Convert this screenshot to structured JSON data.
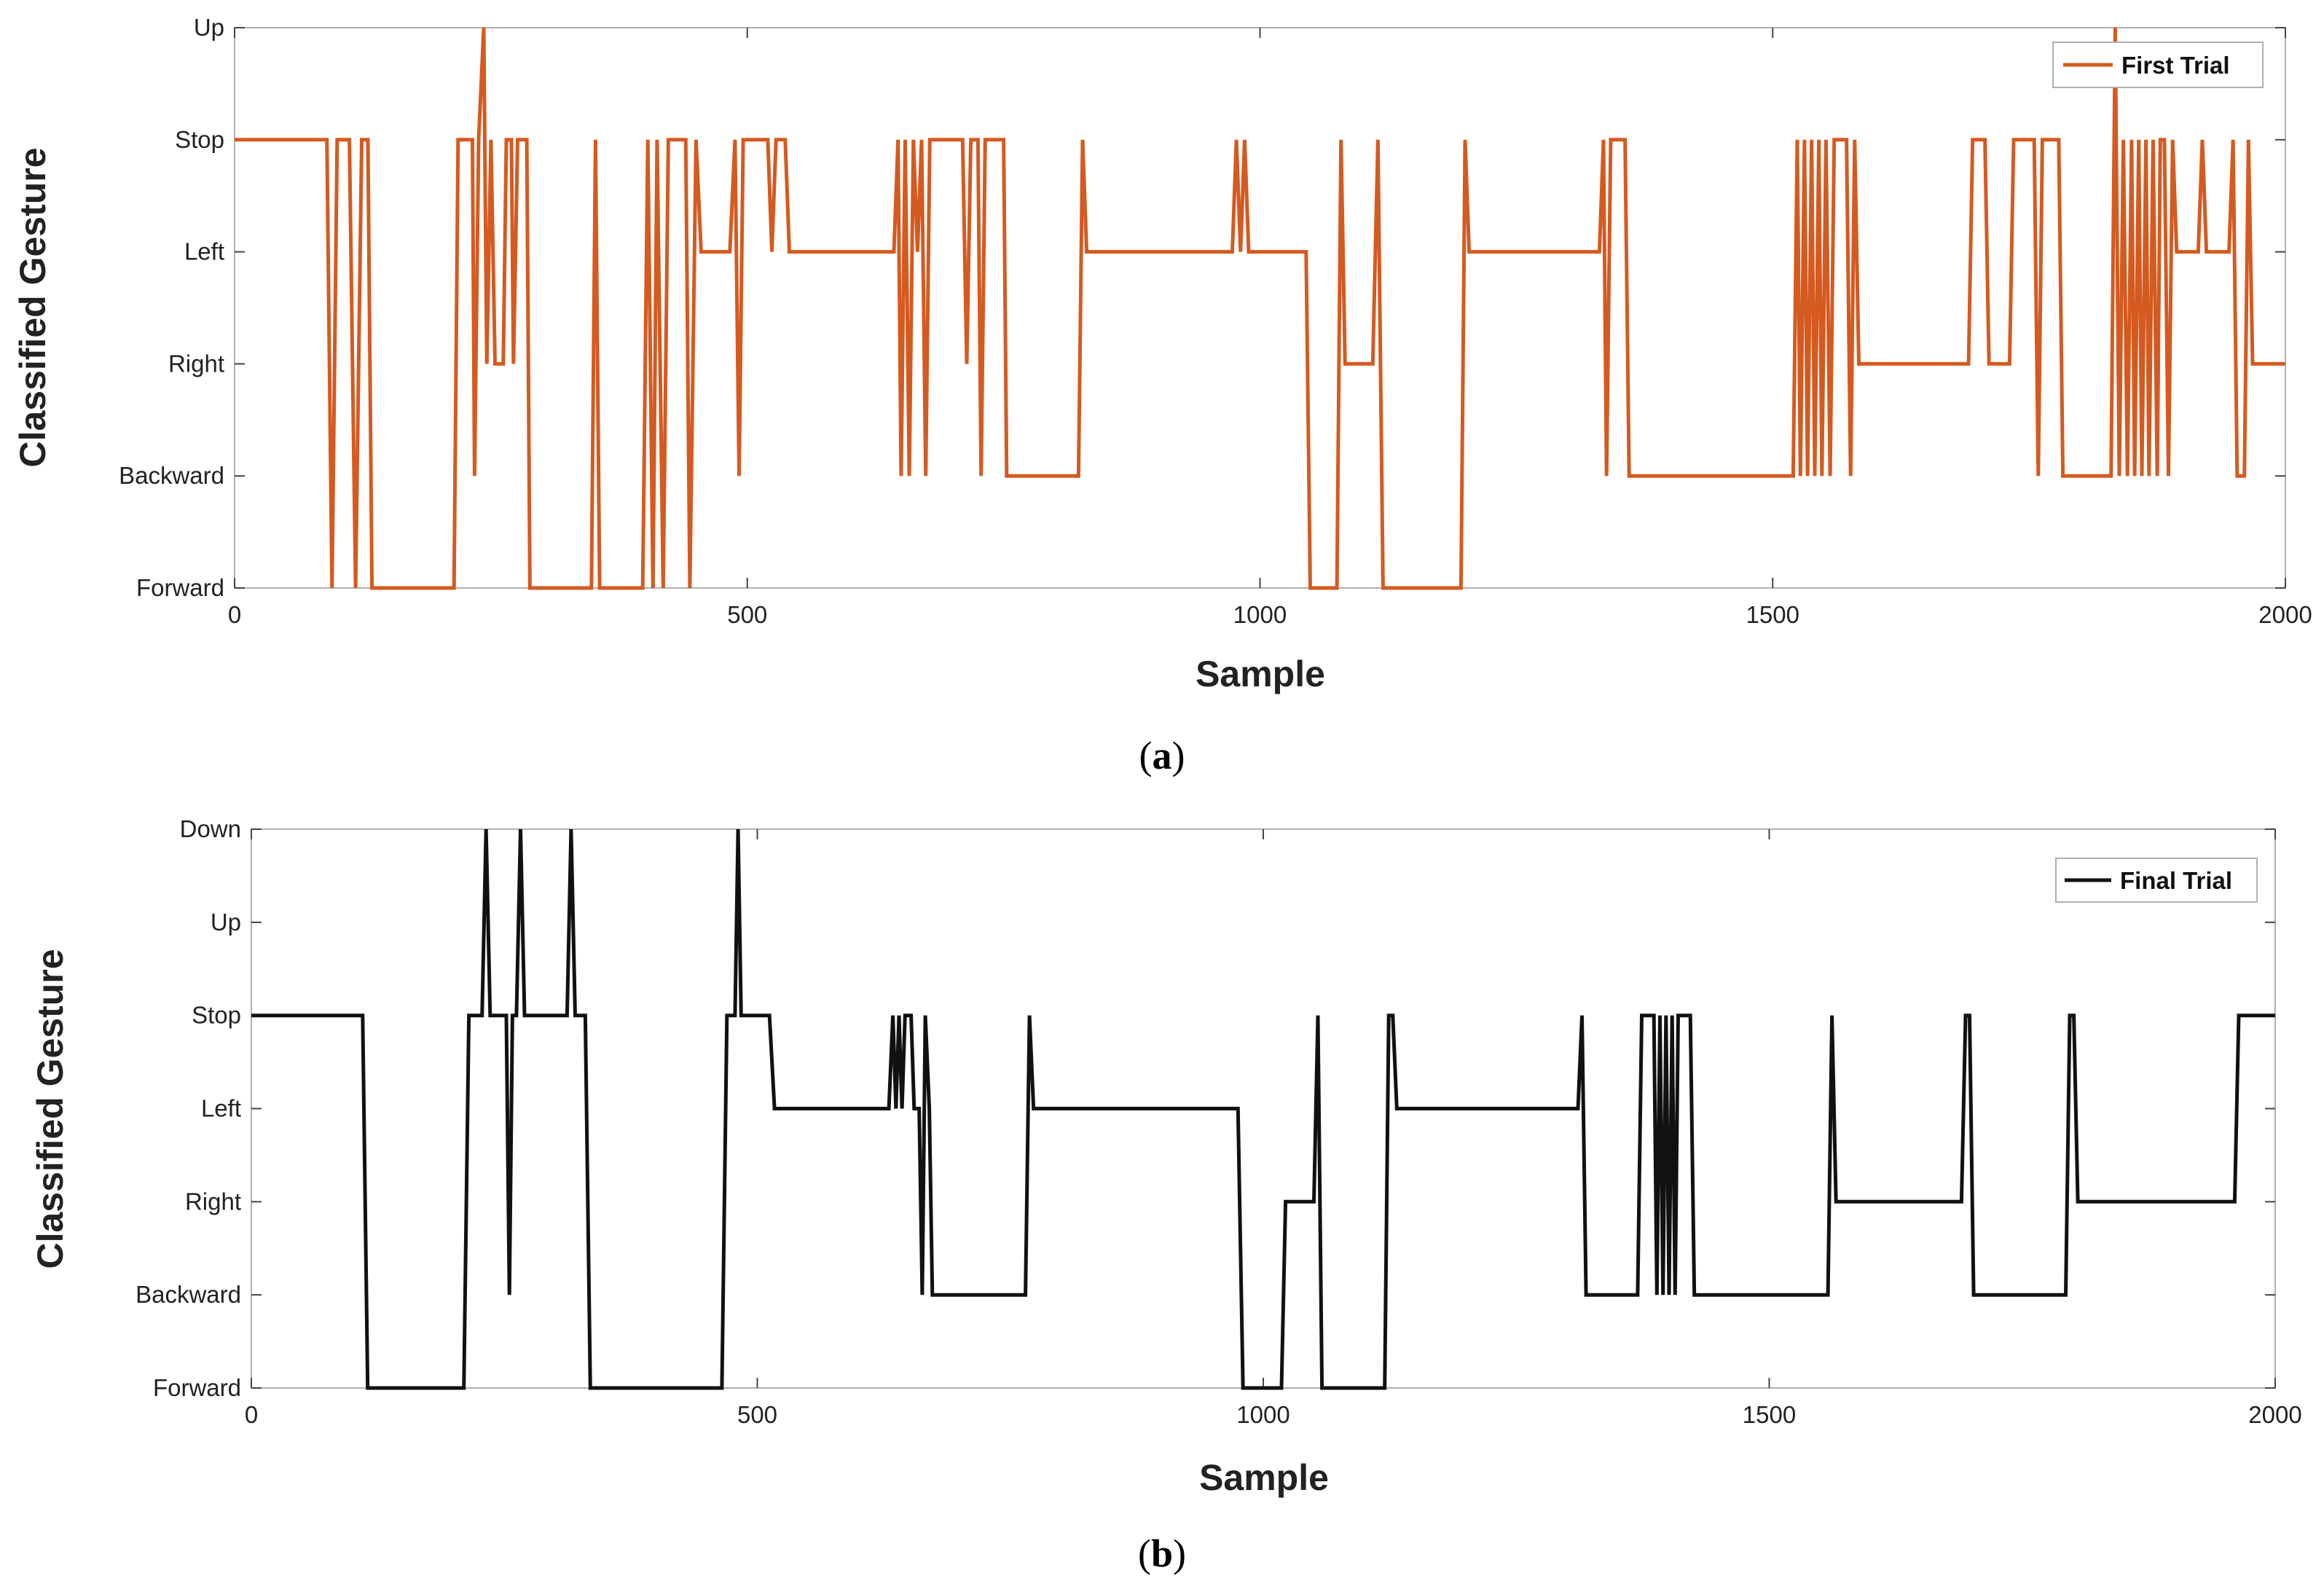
{
  "chart_data": [
    {
      "type": "line",
      "step": true,
      "panel_label": "a",
      "title": "",
      "xlabel": "Sample",
      "ylabel": "Classified Gesture",
      "xlim": [
        0,
        2000
      ],
      "xticks": [
        0,
        500,
        1000,
        1500,
        2000
      ],
      "categories": [
        "Forward",
        "Backward",
        "Right",
        "Left",
        "Stop",
        "Up"
      ],
      "legend": {
        "position": "top-right",
        "label": "First Trial"
      },
      "series": [
        {
          "name": "First Trial",
          "color": "#d55a20",
          "points": [
            [
              0,
              "Stop"
            ],
            [
              90,
              "Stop"
            ],
            [
              95,
              "Forward"
            ],
            [
              100,
              "Stop"
            ],
            [
              112,
              "Stop"
            ],
            [
              118,
              "Forward"
            ],
            [
              124,
              "Stop"
            ],
            [
              130,
              "Stop"
            ],
            [
              134,
              "Forward"
            ],
            [
              214,
              "Forward"
            ],
            [
              218,
              "Stop"
            ],
            [
              232,
              "Stop"
            ],
            [
              234,
              "Backward"
            ],
            [
              238,
              "Stop"
            ],
            [
              243,
              "Up"
            ],
            [
              246,
              "Right"
            ],
            [
              250,
              "Stop"
            ],
            [
              254,
              "Right"
            ],
            [
              262,
              "Right"
            ],
            [
              265,
              "Stop"
            ],
            [
              270,
              "Stop"
            ],
            [
              272,
              "Right"
            ],
            [
              276,
              "Stop"
            ],
            [
              285,
              "Stop"
            ],
            [
              288,
              "Forward"
            ],
            [
              348,
              "Forward"
            ],
            [
              352,
              "Stop"
            ],
            [
              356,
              "Forward"
            ],
            [
              398,
              "Forward"
            ],
            [
              403,
              "Stop"
            ],
            [
              408,
              "Forward"
            ],
            [
              412,
              "Stop"
            ],
            [
              418,
              "Forward"
            ],
            [
              423,
              "Stop"
            ],
            [
              440,
              "Stop"
            ],
            [
              444,
              "Forward"
            ],
            [
              450,
              "Stop"
            ],
            [
              455,
              "Left"
            ],
            [
              483,
              "Left"
            ],
            [
              488,
              "Stop"
            ],
            [
              492,
              "Backward"
            ],
            [
              496,
              "Stop"
            ],
            [
              520,
              "Stop"
            ],
            [
              524,
              "Left"
            ],
            [
              528,
              "Stop"
            ],
            [
              537,
              "Stop"
            ],
            [
              541,
              "Left"
            ],
            [
              643,
              "Left"
            ],
            [
              647,
              "Stop"
            ],
            [
              650,
              "Backward"
            ],
            [
              654,
              "Stop"
            ],
            [
              658,
              "Backward"
            ],
            [
              662,
              "Stop"
            ],
            [
              666,
              "Left"
            ],
            [
              670,
              "Stop"
            ],
            [
              674,
              "Backward"
            ],
            [
              678,
              "Stop"
            ],
            [
              710,
              "Stop"
            ],
            [
              714,
              "Right"
            ],
            [
              718,
              "Stop"
            ],
            [
              725,
              "Stop"
            ],
            [
              728,
              "Backward"
            ],
            [
              732,
              "Stop"
            ],
            [
              750,
              "Stop"
            ],
            [
              753,
              "Backward"
            ],
            [
              823,
              "Backward"
            ],
            [
              827,
              "Stop"
            ],
            [
              831,
              "Left"
            ],
            [
              973,
              "Left"
            ],
            [
              977,
              "Stop"
            ],
            [
              981,
              "Left"
            ],
            [
              985,
              "Stop"
            ],
            [
              989,
              "Left"
            ],
            [
              1045,
              "Left"
            ],
            [
              1049,
              "Forward"
            ],
            [
              1075,
              "Forward"
            ],
            [
              1079,
              "Stop"
            ],
            [
              1083,
              "Right"
            ],
            [
              1110,
              "Right"
            ],
            [
              1115,
              "Stop"
            ],
            [
              1120,
              "Forward"
            ],
            [
              1196,
              "Forward"
            ],
            [
              1200,
              "Stop"
            ],
            [
              1204,
              "Left"
            ],
            [
              1331,
              "Left"
            ],
            [
              1335,
              "Stop"
            ],
            [
              1338,
              "Backward"
            ],
            [
              1342,
              "Stop"
            ],
            [
              1356,
              "Stop"
            ],
            [
              1360,
              "Backward"
            ],
            [
              1520,
              "Backward"
            ],
            [
              1524,
              "Stop"
            ],
            [
              1527,
              "Backward"
            ],
            [
              1531,
              "Stop"
            ],
            [
              1534,
              "Backward"
            ],
            [
              1538,
              "Stop"
            ],
            [
              1541,
              "Backward"
            ],
            [
              1545,
              "Stop"
            ],
            [
              1548,
              "Backward"
            ],
            [
              1552,
              "Stop"
            ],
            [
              1556,
              "Backward"
            ],
            [
              1560,
              "Stop"
            ],
            [
              1572,
              "Stop"
            ],
            [
              1576,
              "Backward"
            ],
            [
              1580,
              "Stop"
            ],
            [
              1584,
              "Right"
            ],
            [
              1691,
              "Right"
            ],
            [
              1695,
              "Stop"
            ],
            [
              1707,
              "Stop"
            ],
            [
              1711,
              "Right"
            ],
            [
              1731,
              "Right"
            ],
            [
              1735,
              "Stop"
            ],
            [
              1755,
              "Stop"
            ],
            [
              1759,
              "Backward"
            ],
            [
              1763,
              "Stop"
            ],
            [
              1779,
              "Stop"
            ],
            [
              1783,
              "Backward"
            ],
            [
              1830,
              "Backward"
            ],
            [
              1834,
              "Up"
            ],
            [
              1838,
              "Backward"
            ],
            [
              1842,
              "Stop"
            ],
            [
              1846,
              "Backward"
            ],
            [
              1850,
              "Stop"
            ],
            [
              1853,
              "Backward"
            ],
            [
              1857,
              "Stop"
            ],
            [
              1860,
              "Backward"
            ],
            [
              1864,
              "Stop"
            ],
            [
              1867,
              "Backward"
            ],
            [
              1871,
              "Stop"
            ],
            [
              1875,
              "Backward"
            ],
            [
              1878,
              "Stop"
            ],
            [
              1882,
              "Stop"
            ],
            [
              1886,
              "Backward"
            ],
            [
              1890,
              "Stop"
            ],
            [
              1894,
              "Left"
            ],
            [
              1915,
              "Left"
            ],
            [
              1919,
              "Stop"
            ],
            [
              1923,
              "Left"
            ],
            [
              1945,
              "Left"
            ],
            [
              1949,
              "Stop"
            ],
            [
              1953,
              "Backward"
            ],
            [
              1960,
              "Backward"
            ],
            [
              1964,
              "Stop"
            ],
            [
              1968,
              "Right"
            ],
            [
              2000,
              "Right"
            ]
          ]
        }
      ]
    },
    {
      "type": "line",
      "step": true,
      "panel_label": "b",
      "title": "",
      "xlabel": "Sample",
      "ylabel": "Classified Gesture",
      "xlim": [
        0,
        2000
      ],
      "xticks": [
        0,
        500,
        1000,
        1500,
        2000
      ],
      "categories": [
        "Forward",
        "Backward",
        "Right",
        "Left",
        "Stop",
        "Up",
        "Down"
      ],
      "legend": {
        "position": "top-right",
        "label": "Final Trial"
      },
      "series": [
        {
          "name": "Final Trial",
          "color": "#111111",
          "points": [
            [
              0,
              "Stop"
            ],
            [
              110,
              "Stop"
            ],
            [
              115,
              "Forward"
            ],
            [
              210,
              "Forward"
            ],
            [
              215,
              "Stop"
            ],
            [
              228,
              "Stop"
            ],
            [
              232,
              "Down"
            ],
            [
              236,
              "Stop"
            ],
            [
              252,
              "Stop"
            ],
            [
              255,
              "Backward"
            ],
            [
              258,
              "Stop"
            ],
            [
              262,
              "Stop"
            ],
            [
              266,
              "Down"
            ],
            [
              270,
              "Stop"
            ],
            [
              312,
              "Stop"
            ],
            [
              316,
              "Down"
            ],
            [
              320,
              "Stop"
            ],
            [
              330,
              "Stop"
            ],
            [
              335,
              "Forward"
            ],
            [
              465,
              "Forward"
            ],
            [
              470,
              "Stop"
            ],
            [
              478,
              "Stop"
            ],
            [
              481,
              "Down"
            ],
            [
              484,
              "Stop"
            ],
            [
              512,
              "Stop"
            ],
            [
              517,
              "Left"
            ],
            [
              630,
              "Left"
            ],
            [
              634,
              "Stop"
            ],
            [
              637,
              "Left"
            ],
            [
              640,
              "Stop"
            ],
            [
              643,
              "Left"
            ],
            [
              646,
              "Stop"
            ],
            [
              652,
              "Stop"
            ],
            [
              655,
              "Left"
            ],
            [
              660,
              "Left"
            ],
            [
              663,
              "Backward"
            ],
            [
              666,
              "Stop"
            ],
            [
              670,
              "Left"
            ],
            [
              673,
              "Backward"
            ],
            [
              765,
              "Backward"
            ],
            [
              769,
              "Stop"
            ],
            [
              773,
              "Left"
            ],
            [
              975,
              "Left"
            ],
            [
              980,
              "Forward"
            ],
            [
              1018,
              "Forward"
            ],
            [
              1022,
              "Right"
            ],
            [
              1050,
              "Right"
            ],
            [
              1054,
              "Stop"
            ],
            [
              1058,
              "Forward"
            ],
            [
              1120,
              "Forward"
            ],
            [
              1124,
              "Stop"
            ],
            [
              1128,
              "Stop"
            ],
            [
              1132,
              "Left"
            ],
            [
              1311,
              "Left"
            ],
            [
              1315,
              "Stop"
            ],
            [
              1319,
              "Backward"
            ],
            [
              1370,
              "Backward"
            ],
            [
              1374,
              "Stop"
            ],
            [
              1386,
              "Stop"
            ],
            [
              1389,
              "Backward"
            ],
            [
              1392,
              "Stop"
            ],
            [
              1395,
              "Backward"
            ],
            [
              1398,
              "Stop"
            ],
            [
              1401,
              "Backward"
            ],
            [
              1404,
              "Stop"
            ],
            [
              1407,
              "Backward"
            ],
            [
              1410,
              "Stop"
            ],
            [
              1422,
              "Stop"
            ],
            [
              1426,
              "Backward"
            ],
            [
              1558,
              "Backward"
            ],
            [
              1562,
              "Stop"
            ],
            [
              1566,
              "Right"
            ],
            [
              1690,
              "Right"
            ],
            [
              1694,
              "Stop"
            ],
            [
              1698,
              "Stop"
            ],
            [
              1702,
              "Backward"
            ],
            [
              1793,
              "Backward"
            ],
            [
              1797,
              "Stop"
            ],
            [
              1801,
              "Stop"
            ],
            [
              1805,
              "Right"
            ],
            [
              1960,
              "Right"
            ],
            [
              1964,
              "Stop"
            ],
            [
              2000,
              "Stop"
            ]
          ]
        }
      ]
    }
  ]
}
